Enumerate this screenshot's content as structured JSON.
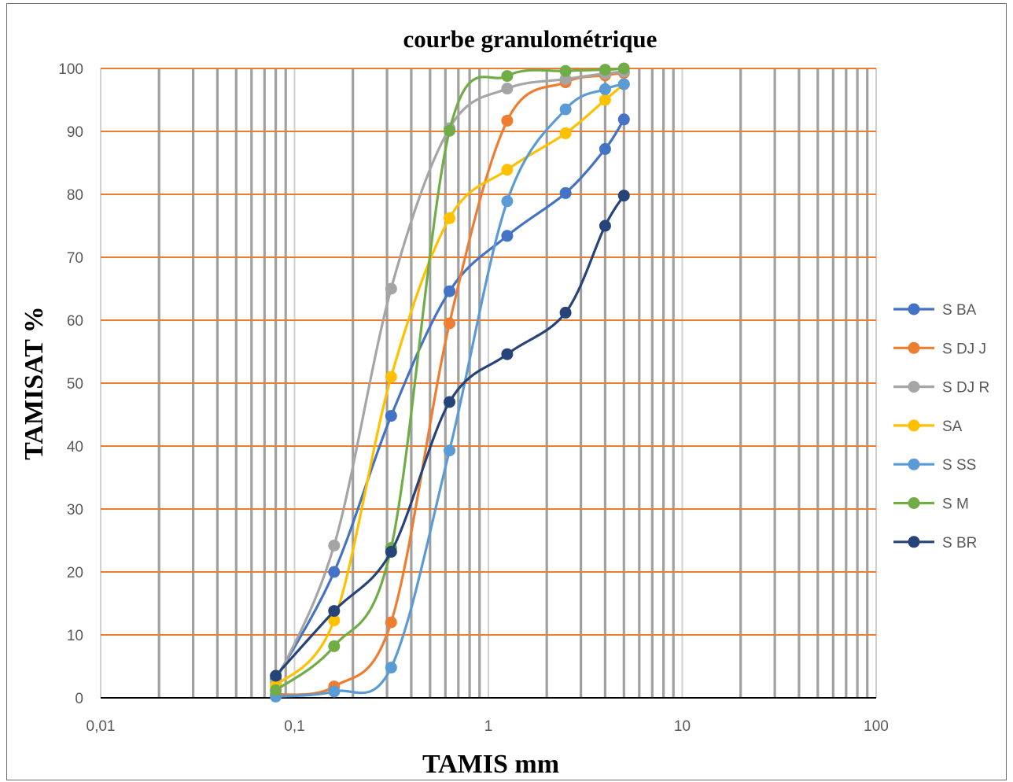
{
  "chart_data": {
    "type": "line",
    "title": "courbe granulométrique",
    "xlabel": "TAMIS  mm",
    "ylabel": "TAMISAT  %",
    "x_scale": "log",
    "xlim": [
      0.01,
      100
    ],
    "ylim": [
      0,
      100
    ],
    "x_ticks": [
      0.01,
      0.1,
      1,
      10,
      100
    ],
    "x_tick_labels": [
      "0,01",
      "0,1",
      "1",
      "10",
      "100"
    ],
    "y_ticks": [
      0,
      10,
      20,
      30,
      40,
      50,
      60,
      70,
      80,
      90,
      100
    ],
    "y_tick_labels": [
      "0",
      "10",
      "20",
      "30",
      "40",
      "50",
      "60",
      "70",
      "80",
      "90",
      "100"
    ],
    "grid": true,
    "legend_position": "right",
    "x": [
      0.08,
      0.16,
      0.315,
      0.63,
      1.25,
      2.5,
      4,
      5
    ],
    "series": [
      {
        "name": "S BA",
        "color": "#4472c4",
        "values": [
          3,
          20,
          44.8,
          64.6,
          73.4,
          80.2,
          87.2,
          91.9
        ]
      },
      {
        "name": "S DJ J",
        "color": "#ed7d31",
        "values": [
          0.5,
          1.8,
          12,
          59.5,
          91.7,
          97.8,
          98.9,
          99.3
        ]
      },
      {
        "name": "S DJ R",
        "color": "#a5a5a5",
        "values": [
          2.5,
          24.2,
          65,
          90.5,
          96.8,
          98.3,
          99.2,
          99.5
        ]
      },
      {
        "name": "SA",
        "color": "#ffc000",
        "values": [
          1.9,
          12.3,
          51,
          76.2,
          83.9,
          89.7,
          95,
          97.5
        ]
      },
      {
        "name": "S SS",
        "color": "#5b9bd5",
        "values": [
          0.2,
          1,
          4.8,
          39.3,
          78.9,
          93.5,
          96.7,
          97.5
        ]
      },
      {
        "name": "S M",
        "color": "#70ad47",
        "values": [
          1.2,
          8.2,
          23.8,
          90.1,
          98.8,
          99.6,
          99.8,
          100
        ]
      },
      {
        "name": "S BR",
        "color": "#264478",
        "values": [
          3.5,
          13.8,
          23.2,
          47,
          54.6,
          61.2,
          75,
          79.8
        ]
      }
    ]
  },
  "colors": {
    "horizontal_grid": "#ed7d31",
    "vertical_grid": "#a0a0a0",
    "axis_line": "#000000"
  }
}
